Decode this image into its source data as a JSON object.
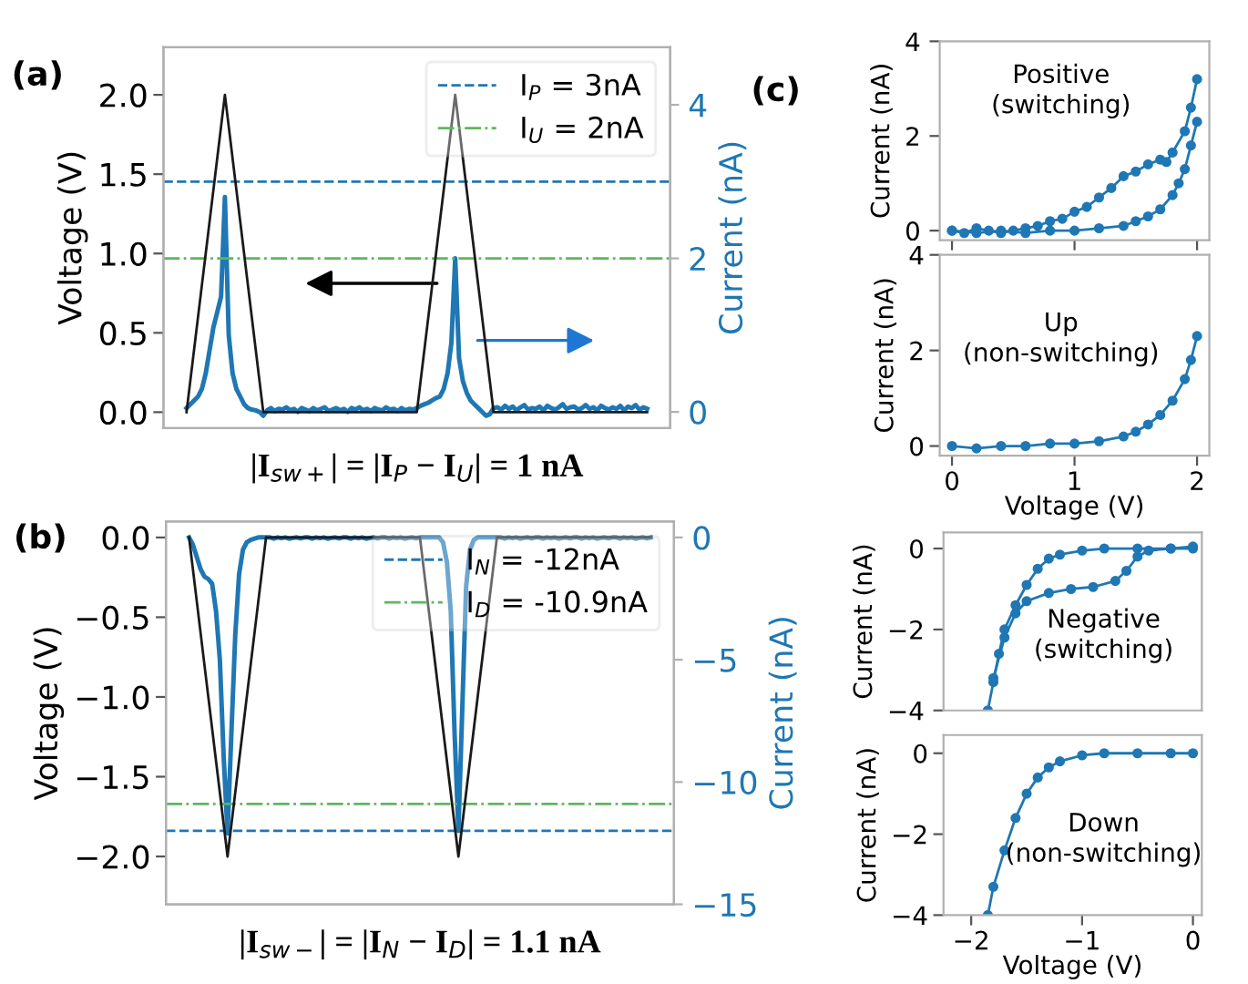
{
  "chart_data": [
    {
      "type": "line",
      "title": "(a)",
      "xlabel": "|I$_{sw+}$| = |I$_{P}$ − I$_{U}$| = 1 nA",
      "ylabel": "Voltage (V)",
      "y2label": "Current (nA)",
      "categories": [
        null,
        null,
        null,
        null,
        null,
        null,
        null,
        null,
        null,
        null,
        null,
        null,
        null,
        null,
        null,
        null,
        null,
        null,
        null,
        null,
        null,
        null,
        null,
        null,
        null,
        null,
        null,
        null,
        null,
        null,
        null,
        null,
        null,
        null,
        null,
        null,
        null,
        null,
        null,
        null,
        null,
        null,
        null,
        null,
        null,
        null,
        null,
        null,
        null,
        null,
        null,
        null,
        null,
        null,
        null,
        null,
        null,
        null,
        null,
        null,
        null,
        null,
        null,
        null,
        null,
        null,
        null,
        null,
        null,
        null,
        null,
        null,
        null,
        null,
        null,
        null,
        null,
        null,
        null,
        null,
        null,
        null,
        null,
        null,
        null,
        null,
        null,
        null,
        null,
        null,
        null,
        null,
        null,
        null,
        null,
        null,
        null,
        null,
        null,
        null,
        null,
        null,
        null,
        null,
        null,
        null,
        null,
        null,
        null,
        null,
        null,
        null,
        null,
        null,
        null,
        null,
        null,
        null,
        null,
        null,
        null
      ],
      "series": [
        {
          "color": "#1a1a1a",
          "values": [
            0,
            0.2,
            0.4,
            0.6,
            0.8,
            1.0,
            1.2,
            1.4,
            1.6,
            1.8,
            2.0,
            1.8,
            1.6,
            1.4,
            1.2,
            1.0,
            0.8,
            0.6,
            0.4,
            0.2,
            0,
            0,
            0,
            0,
            0,
            0,
            0,
            0,
            0,
            0,
            0,
            0,
            0,
            0,
            0,
            0,
            0,
            0,
            0,
            0,
            0,
            0,
            0,
            0,
            0,
            0,
            0,
            0,
            0,
            0,
            0,
            0,
            0,
            0,
            0,
            0,
            0,
            0,
            0,
            0,
            0,
            0.2,
            0.4,
            0.6,
            0.8,
            1.0,
            1.2,
            1.4,
            1.6,
            1.8,
            2.0,
            1.8,
            1.6,
            1.4,
            1.2,
            1.0,
            0.8,
            0.6,
            0.4,
            0.2,
            0,
            0,
            0,
            0,
            0,
            0,
            0,
            0,
            0,
            0,
            0,
            0,
            0,
            0,
            0,
            0,
            0,
            0,
            0,
            0,
            0,
            0,
            0,
            0,
            0,
            0,
            0,
            0,
            0,
            0,
            0,
            0,
            0,
            0,
            0,
            0,
            0,
            0,
            0,
            0,
            0
          ]
        },
        {
          "color": "#1f77b4",
          "axis": "y2",
          "values": [
            0.05,
            0.1,
            0.15,
            0.2,
            0.3,
            0.5,
            0.8,
            1.1,
            1.3,
            1.5,
            2.8,
            1.0,
            0.5,
            0.3,
            0.2,
            0.1,
            0.05,
            0.03,
            0.02,
            0.0,
            -0.05,
            0.02,
            0.05,
            0.01,
            0.04,
            0.03,
            0.06,
            0.02,
            0.04,
            0.0,
            0.05,
            0.03,
            0.01,
            0.05,
            0.02,
            0.04,
            0.06,
            0.01,
            0.03,
            0.05,
            0.02,
            0.04,
            0.0,
            0.05,
            0.03,
            0.06,
            0.02,
            0.04,
            0.01,
            0.05,
            0.03,
            0.02,
            0.06,
            0.03,
            0.04,
            0.01,
            0.05,
            0.02,
            0.04,
            0.03,
            0.05,
            0.08,
            0.1,
            0.12,
            0.15,
            0.18,
            0.2,
            0.3,
            0.5,
            0.9,
            2.0,
            0.7,
            0.4,
            0.25,
            0.15,
            0.1,
            0.05,
            0.0,
            -0.05,
            -0.03,
            0.05,
            0.06,
            0.03,
            0.08,
            0.04,
            0.07,
            0.02,
            0.06,
            0.09,
            0.03,
            0.05,
            0.04,
            0.07,
            0.02,
            0.08,
            0.05,
            0.03,
            0.06,
            0.1,
            0.04,
            0.06,
            0.07,
            0.03,
            0.05,
            0.09,
            0.04,
            0.06,
            0.02,
            0.08,
            0.05,
            0.03,
            0.06,
            0.04,
            0.08,
            0.02,
            0.07,
            0.05,
            0.09,
            0.03,
            0.06,
            0.04
          ]
        }
      ],
      "ylim": [
        -0.1,
        2.3
      ],
      "yticks": [
        {
          "value": 0,
          "label": "0.0"
        },
        {
          "value": 0.5,
          "label": "0.5"
        },
        {
          "value": 1,
          "label": "1.0"
        },
        {
          "value": 1.5,
          "label": "1.5"
        },
        {
          "value": 2,
          "label": "2.0"
        }
      ],
      "y2lim": [
        -0.21,
        4.75
      ],
      "y2ticks": [
        0,
        2,
        4
      ],
      "ref_lines": [
        {
          "axis": "y2",
          "value": 3,
          "label": "I$_{P}$ = 3nA",
          "color": "#1f77b4",
          "line_style": "dashed"
        },
        {
          "axis": "y2",
          "value": 2,
          "label": "I$_{U}$ = 2nA",
          "color": "#5cb85c",
          "line_style": "dashdot"
        }
      ],
      "legend": "top right"
    },
    {
      "type": "line",
      "title": "(b)",
      "xlabel": "|I$_{sw−}$| = |I$_{N}$ − I$_{D}$| = 1.1 nA",
      "ylabel": "Voltage (V)",
      "y2label": "Current (nA)",
      "categories": [
        null,
        null,
        null,
        null,
        null,
        null,
        null,
        null,
        null,
        null,
        null,
        null,
        null,
        null,
        null,
        null,
        null,
        null,
        null,
        null,
        null,
        null,
        null,
        null,
        null,
        null,
        null,
        null,
        null,
        null,
        null,
        null,
        null,
        null,
        null,
        null,
        null,
        null,
        null,
        null,
        null,
        null,
        null,
        null,
        null,
        null,
        null,
        null,
        null,
        null,
        null,
        null,
        null,
        null,
        null,
        null,
        null,
        null,
        null,
        null,
        null,
        null,
        null,
        null,
        null,
        null,
        null,
        null,
        null,
        null,
        null,
        null,
        null,
        null,
        null,
        null,
        null,
        null,
        null,
        null,
        null,
        null,
        null,
        null,
        null,
        null,
        null,
        null,
        null,
        null,
        null,
        null,
        null,
        null,
        null,
        null,
        null,
        null,
        null,
        null,
        null,
        null,
        null,
        null,
        null,
        null,
        null,
        null,
        null,
        null,
        null,
        null,
        null,
        null,
        null,
        null,
        null,
        null,
        null,
        null,
        null
      ],
      "series": [
        {
          "color": "#1a1a1a",
          "values": [
            0,
            -0.2,
            -0.4,
            -0.6,
            -0.8,
            -1.0,
            -1.2,
            -1.4,
            -1.6,
            -1.8,
            -2.0,
            -1.8,
            -1.6,
            -1.4,
            -1.2,
            -1.0,
            -0.8,
            -0.6,
            -0.4,
            -0.2,
            0,
            0,
            0,
            0,
            0,
            0,
            0,
            0,
            0,
            0,
            0,
            0,
            0,
            0,
            0,
            0,
            0,
            0,
            0,
            0,
            0,
            0,
            0,
            0,
            0,
            0,
            0,
            0,
            0,
            0,
            0,
            0,
            0,
            0,
            0,
            0,
            0,
            0,
            0,
            0,
            0,
            -0.2,
            -0.4,
            -0.6,
            -0.8,
            -1.0,
            -1.2,
            -1.4,
            -1.6,
            -1.8,
            -2.0,
            -1.8,
            -1.6,
            -1.4,
            -1.2,
            -1.0,
            -0.8,
            -0.6,
            -0.4,
            -0.2,
            0,
            0,
            0,
            0,
            0,
            0,
            0,
            0,
            0,
            0,
            0,
            0,
            0,
            0,
            0,
            0,
            0,
            0,
            0,
            0,
            0,
            0,
            0,
            0,
            0,
            0,
            0,
            0,
            0,
            0,
            0,
            0,
            0,
            0,
            0,
            0,
            0,
            0,
            0,
            0,
            0
          ]
        },
        {
          "color": "#1f77b4",
          "axis": "y2",
          "values": [
            0,
            -0.3,
            -0.8,
            -1.3,
            -1.6,
            -1.7,
            -1.9,
            -3.0,
            -5.0,
            -9.0,
            -12.1,
            -8.0,
            -4.0,
            -1.5,
            -0.5,
            -0.2,
            -0.1,
            -0.05,
            0,
            0,
            0,
            0,
            -0.05,
            0,
            -0.03,
            0,
            -0.05,
            -0.02,
            0,
            -0.04,
            0,
            0,
            -0.05,
            0,
            -0.03,
            0,
            -0.05,
            -0.02,
            0,
            -0.04,
            0,
            0,
            -0.05,
            0,
            -0.03,
            0,
            -0.05,
            -0.02,
            0,
            -0.04,
            0,
            0,
            -0.05,
            0,
            -0.03,
            0,
            -0.05,
            -0.02,
            0,
            -0.04,
            0,
            0,
            0,
            0,
            0,
            0,
            -0.2,
            -1.0,
            -3.0,
            -8.0,
            -12.0,
            -7.0,
            -2.0,
            -0.5,
            -0.1,
            0,
            0,
            0,
            0,
            0,
            0,
            0,
            -0.05,
            0,
            -0.03,
            0,
            -0.05,
            -0.02,
            0,
            -0.04,
            0,
            0,
            -0.05,
            0,
            -0.03,
            0,
            -0.05,
            -0.02,
            0,
            -0.04,
            0,
            0,
            -0.05,
            0,
            -0.03,
            0,
            -0.05,
            -0.02,
            0,
            -0.04,
            0,
            0,
            -0.05,
            0,
            -0.03,
            0,
            -0.05,
            -0.02,
            0,
            -0.04,
            0
          ]
        }
      ],
      "ylim": [
        -2.3,
        0.1
      ],
      "yticks": [
        {
          "value": -2,
          "label": "−2.0"
        },
        {
          "value": -1.5,
          "label": "−1.5"
        },
        {
          "value": -1,
          "label": "−1.0"
        },
        {
          "value": -0.5,
          "label": "−0.5"
        },
        {
          "value": 0,
          "label": "0.0"
        }
      ],
      "y2lim": [
        -15,
        0.65
      ],
      "y2ticks": [
        {
          "value": -15,
          "label": "−15"
        },
        {
          "value": -10,
          "label": "−10"
        },
        {
          "value": -5,
          "label": "−5"
        },
        0
      ],
      "ref_lines": [
        {
          "axis": "y2",
          "value": -12,
          "label": "I$_{N}$ = -12nA",
          "color": "#1f77b4",
          "line_style": "dashed"
        },
        {
          "axis": "y2",
          "value": -10.9,
          "label": "I$_{D}$ = -10.9nA",
          "color": "#5cb85c",
          "line_style": "dashdot"
        }
      ],
      "legend": "top right"
    },
    {
      "type": "line",
      "title": "(c)",
      "ylabel": "Current (nA)",
      "annotations": [
        "Positive\n(switching)"
      ],
      "marker": "circle",
      "tick_labels": "y",
      "series": [
        {
          "color": "#1f77b4",
          "x": [
            0,
            0.1,
            0.2,
            0.3,
            0.4,
            0.5,
            0.6,
            0.7,
            0.8,
            0.9,
            1.0,
            1.1,
            1.2,
            1.3,
            1.4,
            1.5,
            1.6,
            1.7,
            1.75,
            1.8,
            1.9,
            1.95,
            2.0
          ],
          "values": [
            0,
            -0.05,
            0.05,
            0,
            -0.05,
            0,
            0.05,
            0.1,
            0.2,
            0.25,
            0.4,
            0.5,
            0.7,
            0.9,
            1.15,
            1.25,
            1.4,
            1.5,
            1.45,
            1.65,
            2.1,
            2.6,
            3.2
          ]
        },
        {
          "color": "#1f77b4",
          "x": [
            2.0,
            1.95,
            1.9,
            1.85,
            1.8,
            1.7,
            1.6,
            1.5,
            1.4,
            1.2,
            1.0,
            0.8,
            0.6,
            0.4,
            0.2,
            0
          ],
          "values": [
            2.3,
            1.8,
            1.3,
            1.0,
            0.75,
            0.45,
            0.3,
            0.2,
            0.1,
            0.05,
            0,
            0,
            -0.05,
            0,
            -0.05,
            0
          ]
        }
      ],
      "xlim": [
        -0.1,
        2.1
      ],
      "xticks": [
        0,
        1,
        2
      ],
      "ylim": [
        -0.2,
        4
      ],
      "yticks": [
        0,
        2,
        4
      ]
    },
    {
      "type": "line",
      "xlabel": "Voltage (V)",
      "ylabel": "Current (nA)",
      "annotations": [
        "Up\n(non-switching)"
      ],
      "marker": "circle",
      "x": [
        0,
        0.2,
        0.4,
        0.6,
        0.8,
        1.0,
        1.2,
        1.4,
        1.5,
        1.6,
        1.7,
        1.8,
        1.9,
        1.95,
        2.0
      ],
      "series": [
        {
          "color": "#1f77b4",
          "values": [
            0,
            -0.05,
            0,
            0,
            0.05,
            0.05,
            0.1,
            0.2,
            0.3,
            0.45,
            0.65,
            0.95,
            1.4,
            1.8,
            2.3
          ]
        }
      ],
      "xlim": [
        -0.1,
        2.1
      ],
      "xticks": [
        0,
        1,
        2
      ],
      "ylim": [
        -0.2,
        4
      ],
      "yticks": [
        0,
        2,
        4
      ]
    },
    {
      "type": "line",
      "ylabel": "Current (nA)",
      "annotations": [
        "Negative\n(switching)"
      ],
      "marker": "circle",
      "tick_labels": "y",
      "series": [
        {
          "color": "#1f77b4",
          "x": [
            -1.85,
            -1.8,
            -1.75,
            -1.7,
            -1.6,
            -1.5,
            -1.4,
            -1.3,
            -1.2,
            -1.0,
            -0.8,
            -0.5,
            -0.2,
            0
          ],
          "values": [
            -4,
            -3.3,
            -2.6,
            -2.0,
            -1.4,
            -0.9,
            -0.5,
            -0.25,
            -0.15,
            -0.05,
            0,
            0,
            0,
            0.05
          ]
        },
        {
          "color": "#1f77b4",
          "x": [
            0,
            -0.2,
            -0.4,
            -0.5,
            -0.6,
            -0.7,
            -0.9,
            -1.1,
            -1.3,
            -1.5,
            -1.6,
            -1.7,
            -1.8
          ],
          "values": [
            0,
            0,
            -0.05,
            -0.2,
            -0.55,
            -0.8,
            -0.95,
            -1.0,
            -1.1,
            -1.3,
            -1.6,
            -2.2,
            -3.2
          ]
        }
      ],
      "xlim": [
        -2.25,
        0.08
      ],
      "ylim": [
        -4,
        0.4
      ],
      "yticks": [
        {
          "value": -4,
          "label": "−4"
        },
        {
          "value": -2,
          "label": "−2"
        },
        0
      ]
    },
    {
      "type": "line",
      "xlabel": "Voltage (V)",
      "ylabel": "Current (nA)",
      "annotations": [
        "Down\n(non-switching)"
      ],
      "marker": "circle",
      "x": [
        -1.85,
        -1.8,
        -1.7,
        -1.6,
        -1.5,
        -1.4,
        -1.3,
        -1.2,
        -1.0,
        -0.8,
        -0.5,
        -0.2,
        0
      ],
      "series": [
        {
          "color": "#1f77b4",
          "values": [
            -4,
            -3.3,
            -2.4,
            -1.6,
            -1.0,
            -0.6,
            -0.35,
            -0.2,
            -0.05,
            0,
            0,
            0,
            0
          ]
        }
      ],
      "xlim": [
        -2.25,
        0.08
      ],
      "xticks": [
        {
          "value": -2,
          "label": "−2"
        },
        {
          "value": -1,
          "label": "−1"
        },
        0
      ],
      "ylim": [
        -4,
        0.45
      ],
      "yticks": [
        {
          "value": -4,
          "label": "−4"
        },
        {
          "value": -2,
          "label": "−2"
        },
        0
      ]
    }
  ]
}
